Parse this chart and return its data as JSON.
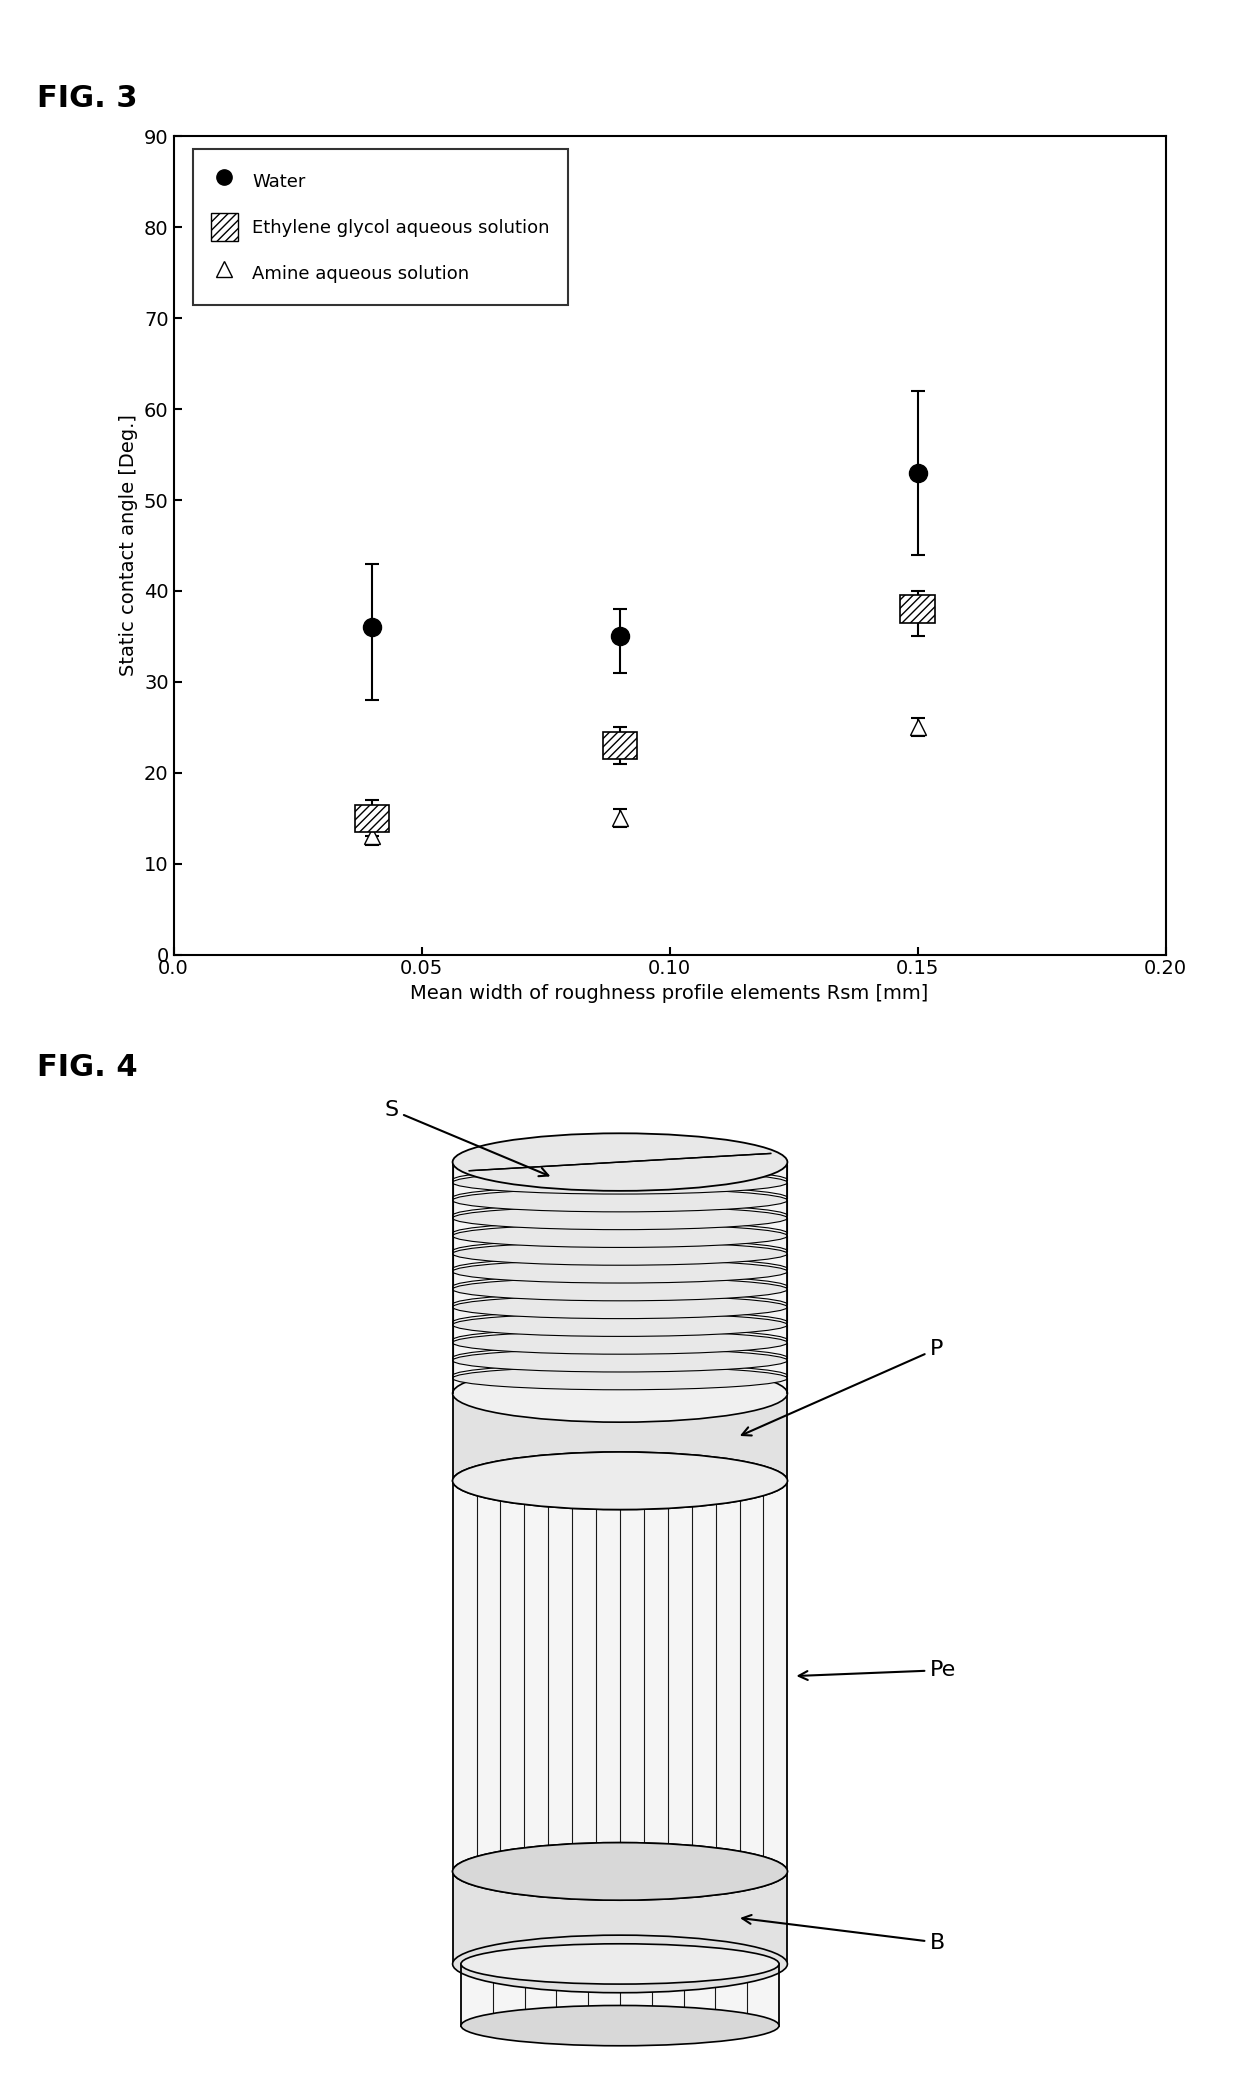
{
  "fig3": {
    "fig_label": "FIG. 3",
    "xlabel": "Mean width of roughness profile elements Rsm [mm]",
    "ylabel": "Static contact angle [Deg.]",
    "xlim": [
      0.0,
      0.2
    ],
    "ylim": [
      0,
      90
    ],
    "xticks": [
      0.0,
      0.05,
      0.1,
      0.15,
      0.2
    ],
    "yticks": [
      0,
      10,
      20,
      30,
      40,
      50,
      60,
      70,
      80,
      90
    ],
    "water": {
      "x": [
        0.04,
        0.09,
        0.15
      ],
      "y": [
        36,
        35,
        53
      ],
      "yerr_upper": [
        7,
        3,
        9
      ],
      "yerr_lower": [
        8,
        4,
        9
      ],
      "label": "Water"
    },
    "ethylene": {
      "x": [
        0.04,
        0.09,
        0.15
      ],
      "y": [
        15,
        23,
        38
      ],
      "yerr_upper": [
        2,
        2,
        2
      ],
      "yerr_lower": [
        2,
        2,
        3
      ],
      "label": "Ethylene glycol aqueous solution"
    },
    "amine": {
      "x": [
        0.04,
        0.09,
        0.15
      ],
      "y": [
        13,
        15,
        25
      ],
      "yerr_upper": [
        1,
        1,
        1
      ],
      "yerr_lower": [
        1,
        1,
        1
      ],
      "label": "Amine aqueous solution"
    }
  },
  "fig4": {
    "fig_label": "FIG. 4"
  },
  "bg": "#ffffff",
  "fg": "#000000"
}
